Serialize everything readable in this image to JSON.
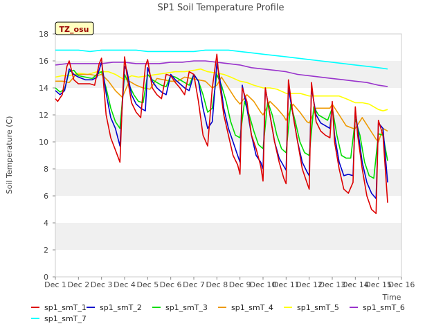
{
  "chart_data": {
    "type": "line",
    "title": "SP1 Soil Temperature Profile",
    "xlabel": "Time",
    "ylabel": "Soil Temperature (C)",
    "xlim": [
      1,
      16
    ],
    "ylim": [
      0,
      18
    ],
    "x_ticks": [
      {
        "x": 1,
        "label": "Dec 1"
      },
      {
        "x": 2,
        "label": "Dec 2"
      },
      {
        "x": 3,
        "label": "Dec 3"
      },
      {
        "x": 4,
        "label": "Dec 4"
      },
      {
        "x": 5,
        "label": "Dec 5"
      },
      {
        "x": 6,
        "label": "Dec 6"
      },
      {
        "x": 7,
        "label": "Dec 7"
      },
      {
        "x": 8,
        "label": "Dec 8"
      },
      {
        "x": 9,
        "label": "Dec 9"
      },
      {
        "x": 10,
        "label": "Dec 10"
      },
      {
        "x": 11,
        "label": "Dec 11"
      },
      {
        "x": 12,
        "label": "Dec 12"
      },
      {
        "x": 13,
        "label": "Dec 13"
      },
      {
        "x": 14,
        "label": "Dec 14"
      },
      {
        "x": 15,
        "label": "Dec 15"
      },
      {
        "x": 16,
        "label": "Dec 16"
      }
    ],
    "y_ticks": [
      0,
      2,
      4,
      6,
      8,
      10,
      12,
      14,
      16,
      18
    ],
    "grid": "horizontal bands",
    "legend_position": "bottom",
    "annotation": "TZ_osu",
    "series": [
      {
        "name": "sp1_smT_1",
        "color": "#dd0000",
        "x": [
          1.0,
          1.1,
          1.3,
          1.5,
          1.6,
          1.8,
          2.0,
          2.2,
          2.5,
          2.7,
          2.9,
          3.0,
          3.2,
          3.4,
          3.6,
          3.8,
          3.9,
          4.0,
          4.1,
          4.3,
          4.5,
          4.7,
          4.9,
          5.0,
          5.2,
          5.4,
          5.6,
          5.8,
          6.0,
          6.2,
          6.4,
          6.6,
          6.8,
          7.0,
          7.2,
          7.4,
          7.6,
          7.8,
          8.0,
          8.1,
          8.3,
          8.5,
          8.7,
          8.9,
          9.0,
          9.1,
          9.3,
          9.5,
          9.7,
          9.9,
          10.0,
          10.1,
          10.3,
          10.5,
          10.7,
          10.9,
          11.0,
          11.1,
          11.3,
          11.5,
          11.7,
          11.9,
          12.0,
          12.1,
          12.3,
          12.5,
          12.7,
          12.9,
          13.0,
          13.1,
          13.3,
          13.5,
          13.7,
          13.9,
          14.0,
          14.1,
          14.3,
          14.5,
          14.7,
          14.9,
          15.0,
          15.2,
          15.4
        ],
        "y": [
          13.2,
          13.0,
          13.5,
          15.6,
          16.0,
          14.6,
          14.3,
          14.3,
          14.3,
          14.2,
          15.8,
          16.2,
          12.0,
          10.3,
          9.4,
          8.5,
          13.0,
          16.3,
          15.0,
          12.9,
          12.2,
          11.8,
          15.6,
          16.1,
          14.0,
          13.5,
          13.2,
          15.0,
          14.9,
          14.4,
          14.0,
          13.5,
          15.2,
          15.0,
          13.0,
          10.5,
          9.7,
          14.0,
          16.5,
          14.5,
          12.0,
          10.5,
          9.0,
          8.3,
          7.6,
          14.0,
          13.0,
          10.5,
          9.5,
          8.2,
          7.1,
          14.0,
          12.0,
          10.0,
          8.5,
          7.3,
          6.9,
          14.6,
          12.0,
          10.0,
          8.0,
          7.0,
          6.5,
          14.4,
          11.5,
          10.8,
          10.5,
          10.3,
          13.0,
          10.0,
          8.0,
          6.5,
          6.2,
          7.0,
          12.6,
          10.5,
          8.0,
          6.0,
          5.0,
          4.7,
          11.6,
          10.5,
          5.5
        ]
      },
      {
        "name": "sp1_smT_2",
        "color": "#0000cc",
        "x": [
          1.0,
          1.2,
          1.4,
          1.6,
          1.8,
          2.0,
          2.3,
          2.6,
          2.8,
          3.0,
          3.2,
          3.4,
          3.6,
          3.8,
          4.0,
          4.1,
          4.3,
          4.5,
          4.7,
          4.9,
          5.0,
          5.2,
          5.4,
          5.6,
          5.8,
          6.0,
          6.2,
          6.4,
          6.6,
          6.8,
          7.0,
          7.2,
          7.4,
          7.6,
          7.8,
          8.0,
          8.1,
          8.3,
          8.5,
          8.7,
          8.9,
          9.0,
          9.1,
          9.3,
          9.5,
          9.7,
          9.9,
          10.0,
          10.1,
          10.3,
          10.5,
          10.7,
          10.9,
          11.0,
          11.1,
          11.3,
          11.5,
          11.7,
          11.9,
          12.0,
          12.1,
          12.3,
          12.5,
          12.7,
          12.9,
          13.0,
          13.1,
          13.3,
          13.5,
          13.7,
          13.9,
          14.0,
          14.1,
          14.3,
          14.5,
          14.7,
          14.9,
          15.0,
          15.2,
          15.4
        ],
        "y": [
          13.8,
          13.5,
          13.8,
          15.4,
          15.0,
          14.8,
          14.6,
          14.6,
          14.8,
          15.9,
          13.6,
          11.8,
          11.0,
          9.7,
          15.6,
          15.3,
          13.5,
          12.8,
          12.5,
          12.3,
          15.5,
          14.5,
          14.0,
          13.7,
          13.5,
          15.0,
          14.6,
          14.3,
          14.0,
          13.8,
          15.0,
          14.5,
          12.5,
          11.0,
          11.5,
          15.8,
          15.0,
          12.5,
          11.0,
          10.0,
          9.0,
          8.5,
          14.2,
          12.5,
          10.5,
          9.0,
          8.5,
          8.0,
          14.0,
          12.0,
          10.0,
          8.8,
          8.2,
          7.9,
          14.0,
          12.0,
          10.0,
          8.5,
          7.8,
          7.5,
          14.0,
          12.0,
          11.4,
          11.2,
          11.0,
          12.8,
          10.5,
          8.5,
          7.5,
          7.6,
          7.5,
          12.3,
          11.0,
          8.5,
          7.0,
          6.2,
          5.8,
          11.4,
          11.0,
          7.0
        ]
      },
      {
        "name": "sp1_smT_3",
        "color": "#00dd00",
        "x": [
          1.0,
          1.2,
          1.4,
          1.6,
          1.8,
          2.0,
          2.3,
          2.6,
          2.8,
          3.0,
          3.2,
          3.4,
          3.6,
          3.8,
          4.0,
          4.2,
          4.4,
          4.6,
          4.8,
          5.0,
          5.2,
          5.4,
          5.6,
          5.8,
          6.0,
          6.2,
          6.4,
          6.6,
          6.8,
          7.0,
          7.2,
          7.4,
          7.6,
          7.8,
          8.0,
          8.2,
          8.4,
          8.6,
          8.8,
          9.0,
          9.2,
          9.4,
          9.6,
          9.8,
          10.0,
          10.2,
          10.4,
          10.6,
          10.8,
          11.0,
          11.2,
          11.4,
          11.6,
          11.8,
          12.0,
          12.2,
          12.4,
          12.6,
          12.8,
          13.0,
          13.2,
          13.4,
          13.6,
          13.8,
          14.0,
          14.2,
          14.4,
          14.6,
          14.8,
          15.0,
          15.2,
          15.4
        ],
        "y": [
          14.0,
          13.7,
          13.9,
          15.2,
          15.3,
          14.9,
          14.8,
          14.7,
          15.0,
          15.2,
          14.0,
          12.5,
          11.5,
          11.0,
          15.0,
          14.2,
          13.5,
          13.0,
          12.9,
          15.0,
          14.6,
          14.4,
          14.2,
          14.1,
          14.9,
          14.8,
          14.6,
          14.4,
          14.2,
          15.0,
          14.5,
          13.5,
          12.2,
          12.5,
          15.0,
          14.2,
          13.0,
          11.5,
          10.5,
          10.3,
          13.0,
          12.0,
          10.8,
          9.8,
          9.5,
          13.0,
          12.0,
          10.5,
          9.5,
          9.2,
          12.8,
          11.5,
          10.0,
          9.2,
          9.0,
          12.6,
          12.0,
          11.8,
          11.6,
          12.5,
          10.5,
          9.0,
          8.8,
          8.8,
          11.7,
          10.5,
          8.5,
          7.5,
          7.3,
          10.6,
          10.5,
          8.6
        ]
      },
      {
        "name": "sp1_smT_4",
        "color": "#ee9900",
        "x": [
          1.0,
          1.3,
          1.6,
          1.9,
          2.2,
          2.5,
          2.8,
          3.0,
          3.3,
          3.6,
          3.9,
          4.2,
          4.5,
          4.8,
          5.1,
          5.4,
          5.7,
          6.0,
          6.3,
          6.6,
          6.9,
          7.2,
          7.5,
          7.8,
          8.0,
          8.2,
          8.5,
          8.8,
          9.0,
          9.3,
          9.6,
          9.9,
          10.0,
          10.3,
          10.6,
          10.9,
          11.0,
          11.3,
          11.6,
          11.9,
          12.0,
          12.3,
          12.6,
          12.9,
          13.0,
          13.3,
          13.6,
          13.9,
          14.0,
          14.3,
          14.6,
          14.9,
          15.0,
          15.2,
          15.4
        ],
        "y": [
          14.5,
          14.5,
          14.4,
          15.0,
          15.0,
          15.0,
          14.9,
          15.0,
          14.5,
          13.8,
          13.3,
          14.5,
          14.2,
          14.0,
          13.9,
          14.7,
          14.6,
          14.5,
          14.5,
          14.8,
          14.7,
          14.6,
          14.5,
          14.0,
          14.2,
          14.8,
          14.0,
          13.2,
          12.8,
          13.5,
          13.0,
          12.2,
          12.0,
          13.0,
          12.5,
          11.9,
          11.6,
          12.8,
          12.2,
          11.5,
          11.4,
          12.5,
          12.5,
          12.5,
          12.8,
          12.0,
          11.2,
          11.0,
          11.0,
          11.8,
          11.0,
          10.2,
          10.0,
          11.0,
          10.8
        ]
      },
      {
        "name": "sp1_smT_5",
        "color": "#ffff00",
        "x": [
          1.0,
          1.3,
          1.6,
          2.0,
          2.4,
          2.8,
          3.0,
          3.3,
          3.6,
          3.8,
          4.0,
          4.3,
          4.6,
          5.0,
          5.4,
          5.8,
          6.2,
          6.6,
          7.0,
          7.3,
          7.6,
          8.0,
          8.3,
          8.6,
          9.0,
          9.3,
          9.6,
          10.0,
          10.3,
          10.6,
          11.0,
          11.3,
          11.6,
          12.0,
          12.3,
          12.6,
          13.0,
          13.3,
          13.6,
          14.0,
          14.3,
          14.6,
          15.0,
          15.2,
          15.4
        ],
        "y": [
          14.8,
          14.9,
          14.9,
          15.1,
          15.0,
          15.2,
          15.2,
          15.2,
          15.0,
          14.8,
          14.6,
          14.9,
          14.8,
          14.9,
          15.0,
          15.1,
          15.2,
          15.2,
          15.3,
          15.4,
          15.2,
          15.1,
          15.0,
          14.8,
          14.5,
          14.4,
          14.2,
          14.0,
          14.0,
          13.9,
          13.6,
          13.6,
          13.6,
          13.4,
          13.4,
          13.4,
          13.4,
          13.4,
          13.2,
          12.9,
          12.9,
          12.8,
          12.4,
          12.3,
          12.4
        ]
      },
      {
        "name": "sp1_smT_6",
        "color": "#9933cc",
        "x": [
          1.0,
          1.5,
          2.0,
          2.5,
          3.0,
          3.5,
          4.0,
          4.5,
          5.0,
          5.5,
          6.0,
          6.5,
          7.0,
          7.5,
          8.0,
          8.5,
          9.0,
          9.5,
          10.0,
          10.5,
          11.0,
          11.5,
          12.0,
          12.5,
          13.0,
          13.5,
          14.0,
          14.5,
          15.0,
          15.4
        ],
        "y": [
          15.7,
          15.8,
          15.8,
          15.8,
          15.8,
          15.9,
          15.9,
          15.8,
          15.8,
          15.8,
          15.9,
          15.9,
          16.0,
          16.0,
          15.9,
          15.8,
          15.7,
          15.5,
          15.4,
          15.3,
          15.2,
          15.0,
          14.9,
          14.8,
          14.7,
          14.6,
          14.5,
          14.4,
          14.2,
          14.1
        ]
      },
      {
        "name": "sp1_smT_7",
        "color": "#00ffff",
        "x": [
          1.0,
          1.5,
          2.0,
          2.5,
          3.0,
          3.5,
          4.0,
          4.5,
          5.0,
          5.5,
          6.0,
          6.5,
          7.0,
          7.5,
          8.0,
          8.5,
          9.0,
          9.5,
          10.0,
          10.5,
          11.0,
          11.5,
          12.0,
          12.5,
          13.0,
          13.5,
          14.0,
          14.5,
          15.0,
          15.4
        ],
        "y": [
          16.8,
          16.8,
          16.8,
          16.7,
          16.8,
          16.8,
          16.8,
          16.8,
          16.7,
          16.7,
          16.7,
          16.7,
          16.7,
          16.8,
          16.8,
          16.8,
          16.7,
          16.6,
          16.5,
          16.4,
          16.3,
          16.2,
          16.1,
          16.0,
          15.9,
          15.8,
          15.7,
          15.6,
          15.5,
          15.4
        ]
      }
    ]
  }
}
